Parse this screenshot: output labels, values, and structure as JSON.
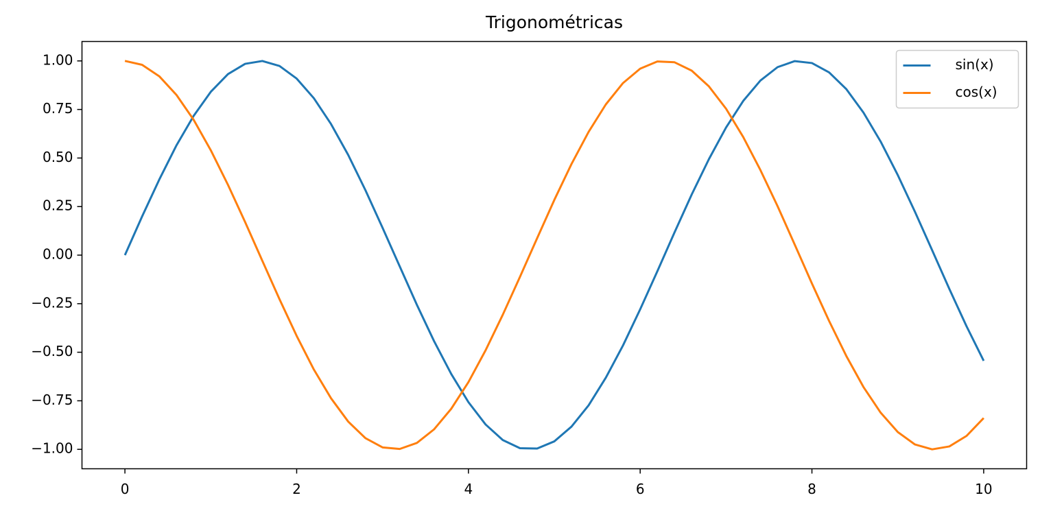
{
  "chart_data": {
    "type": "line",
    "title": "Trigonométricas",
    "x": [
      0,
      0.2,
      0.4,
      0.6,
      0.8,
      1.0,
      1.2,
      1.4,
      1.6,
      1.8,
      2.0,
      2.2,
      2.4,
      2.6,
      2.8,
      3.0,
      3.2,
      3.4,
      3.6,
      3.8,
      4.0,
      4.2,
      4.4,
      4.6,
      4.8,
      5.0,
      5.2,
      5.4,
      5.6,
      5.8,
      6.0,
      6.2,
      6.4,
      6.6,
      6.8,
      7.0,
      7.2,
      7.4,
      7.6,
      7.8,
      8.0,
      8.2,
      8.4,
      8.6,
      8.8,
      9.0,
      9.2,
      9.4,
      9.6,
      9.8,
      10.0
    ],
    "series": [
      {
        "name": "sin(x)",
        "color": "#1f77b4",
        "values": [
          0,
          0.199,
          0.389,
          0.565,
          0.717,
          0.841,
          0.932,
          0.985,
          0.9996,
          0.974,
          0.909,
          0.808,
          0.675,
          0.516,
          0.335,
          0.141,
          -0.058,
          -0.256,
          -0.443,
          -0.612,
          -0.757,
          -0.872,
          -0.952,
          -0.994,
          -0.996,
          -0.959,
          -0.883,
          -0.773,
          -0.631,
          -0.465,
          -0.279,
          -0.083,
          0.117,
          0.312,
          0.494,
          0.657,
          0.794,
          0.899,
          0.968,
          0.999,
          0.989,
          0.941,
          0.855,
          0.734,
          0.585,
          0.412,
          0.223,
          0.025,
          -0.174,
          -0.366,
          -0.544
        ]
      },
      {
        "name": "cos(x)",
        "color": "#ff7f0e",
        "values": [
          1,
          0.98,
          0.921,
          0.825,
          0.697,
          0.54,
          0.362,
          0.17,
          -0.029,
          -0.227,
          -0.416,
          -0.589,
          -0.737,
          -0.857,
          -0.942,
          -0.99,
          -0.998,
          -0.967,
          -0.897,
          -0.791,
          -0.654,
          -0.49,
          -0.307,
          -0.112,
          0.087,
          0.284,
          0.469,
          0.635,
          0.776,
          0.886,
          0.96,
          0.997,
          0.993,
          0.95,
          0.869,
          0.754,
          0.608,
          0.438,
          0.252,
          0.054,
          -0.146,
          -0.339,
          -0.519,
          -0.679,
          -0.811,
          -0.911,
          -0.975,
          -1.0,
          -0.985,
          -0.931,
          -0.839
        ]
      }
    ],
    "xlim": [
      -0.5,
      10.5
    ],
    "xticks": [
      0,
      2,
      4,
      6,
      8,
      10
    ],
    "ylim": [
      -1.1,
      1.1
    ],
    "yticks": [
      {
        "value": -1,
        "label": "−1.00"
      },
      {
        "value": -0.75,
        "label": "−0.75"
      },
      {
        "value": -0.5,
        "label": "−0.50"
      },
      {
        "value": -0.25,
        "label": "−0.25"
      },
      {
        "value": 0,
        "label": "0.00"
      },
      {
        "value": 0.25,
        "label": "0.25"
      },
      {
        "value": 0.5,
        "label": "0.50"
      },
      {
        "value": 0.75,
        "label": "0.75"
      },
      {
        "value": 1,
        "label": "1.00"
      }
    ],
    "grid": false,
    "legend": "upper right"
  }
}
